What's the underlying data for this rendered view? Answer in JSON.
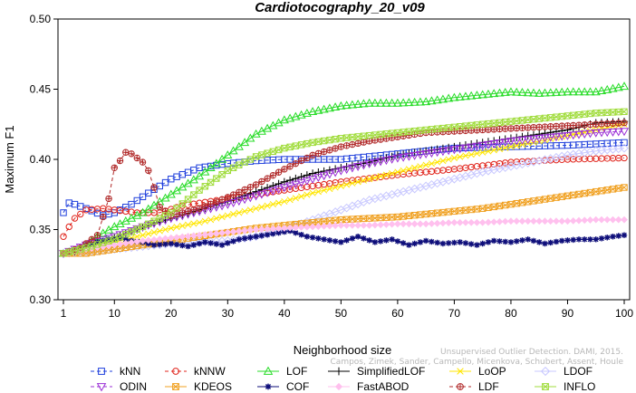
{
  "chart_data": {
    "type": "line",
    "title": "Cardiotocography_20_v09",
    "xlabel": "Neighborhood size",
    "ylabel": "Maximum F1",
    "xlim": [
      1,
      100
    ],
    "ylim": [
      0.3,
      0.5
    ],
    "x_ticks": [
      1,
      10,
      20,
      30,
      40,
      50,
      60,
      70,
      80,
      90,
      100
    ],
    "y_ticks": [
      "0.30",
      "0.35",
      "0.40",
      "0.45",
      "0.50"
    ],
    "grid": false,
    "legend_position": "bottom",
    "series": [
      {
        "name": "kNN",
        "color": "#1f3fdc",
        "marker": "square",
        "dash": "4,3",
        "points": [
          [
            1,
            0.362
          ],
          [
            2,
            0.369
          ],
          [
            3,
            0.368
          ],
          [
            5,
            0.365
          ],
          [
            8,
            0.36
          ],
          [
            10,
            0.362
          ],
          [
            13,
            0.368
          ],
          [
            16,
            0.376
          ],
          [
            20,
            0.386
          ],
          [
            25,
            0.394
          ],
          [
            30,
            0.397
          ],
          [
            35,
            0.399
          ],
          [
            40,
            0.4
          ],
          [
            50,
            0.4
          ],
          [
            60,
            0.404
          ],
          [
            70,
            0.408
          ],
          [
            80,
            0.409
          ],
          [
            90,
            0.41
          ],
          [
            100,
            0.412
          ]
        ]
      },
      {
        "name": "kNNW",
        "color": "#e0241c",
        "marker": "circle",
        "dash": "4,3",
        "points": [
          [
            1,
            0.345
          ],
          [
            2,
            0.352
          ],
          [
            3,
            0.358
          ],
          [
            5,
            0.364
          ],
          [
            8,
            0.365
          ],
          [
            10,
            0.364
          ],
          [
            14,
            0.362
          ],
          [
            18,
            0.362
          ],
          [
            22,
            0.367
          ],
          [
            30,
            0.372
          ],
          [
            40,
            0.378
          ],
          [
            50,
            0.384
          ],
          [
            60,
            0.389
          ],
          [
            70,
            0.393
          ],
          [
            80,
            0.398
          ],
          [
            90,
            0.4
          ],
          [
            100,
            0.401
          ]
        ]
      },
      {
        "name": "LOF",
        "color": "#28dc28",
        "marker": "triangle",
        "dash": "",
        "points": [
          [
            1,
            0.333
          ],
          [
            4,
            0.336
          ],
          [
            7,
            0.345
          ],
          [
            10,
            0.352
          ],
          [
            15,
            0.362
          ],
          [
            20,
            0.375
          ],
          [
            25,
            0.388
          ],
          [
            30,
            0.403
          ],
          [
            35,
            0.418
          ],
          [
            40,
            0.428
          ],
          [
            45,
            0.434
          ],
          [
            50,
            0.438
          ],
          [
            55,
            0.44
          ],
          [
            60,
            0.44
          ],
          [
            65,
            0.441
          ],
          [
            70,
            0.444
          ],
          [
            75,
            0.446
          ],
          [
            80,
            0.448
          ],
          [
            85,
            0.447
          ],
          [
            90,
            0.448
          ],
          [
            95,
            0.448
          ],
          [
            100,
            0.452
          ]
        ]
      },
      {
        "name": "SimplifiedLOF",
        "color": "#000000",
        "marker": "plus",
        "dash": "",
        "points": [
          [
            1,
            0.333
          ],
          [
            4,
            0.335
          ],
          [
            8,
            0.341
          ],
          [
            12,
            0.347
          ],
          [
            16,
            0.353
          ],
          [
            20,
            0.358
          ],
          [
            25,
            0.364
          ],
          [
            30,
            0.37
          ],
          [
            35,
            0.377
          ],
          [
            40,
            0.384
          ],
          [
            45,
            0.39
          ],
          [
            50,
            0.394
          ],
          [
            55,
            0.398
          ],
          [
            60,
            0.403
          ],
          [
            65,
            0.406
          ],
          [
            70,
            0.409
          ],
          [
            75,
            0.412
          ],
          [
            80,
            0.415
          ],
          [
            85,
            0.418
          ],
          [
            90,
            0.421
          ],
          [
            95,
            0.426
          ],
          [
            100,
            0.427
          ]
        ]
      },
      {
        "name": "LoOP",
        "color": "#ffe600",
        "marker": "x",
        "dash": "",
        "points": [
          [
            1,
            0.333
          ],
          [
            5,
            0.336
          ],
          [
            10,
            0.341
          ],
          [
            15,
            0.346
          ],
          [
            20,
            0.351
          ],
          [
            25,
            0.355
          ],
          [
            30,
            0.36
          ],
          [
            35,
            0.365
          ],
          [
            40,
            0.37
          ],
          [
            45,
            0.376
          ],
          [
            50,
            0.381
          ],
          [
            55,
            0.386
          ],
          [
            60,
            0.391
          ],
          [
            65,
            0.396
          ],
          [
            70,
            0.401
          ],
          [
            75,
            0.405
          ],
          [
            80,
            0.409
          ],
          [
            85,
            0.413
          ],
          [
            90,
            0.417
          ],
          [
            95,
            0.421
          ],
          [
            100,
            0.425
          ]
        ]
      },
      {
        "name": "LDOF",
        "color": "#c8c8ff",
        "marker": "diamond",
        "dash": "",
        "points": [
          [
            1,
            0.333
          ],
          [
            5,
            0.334
          ],
          [
            10,
            0.336
          ],
          [
            15,
            0.338
          ],
          [
            20,
            0.34
          ],
          [
            25,
            0.341
          ],
          [
            30,
            0.342
          ],
          [
            35,
            0.345
          ],
          [
            40,
            0.35
          ],
          [
            45,
            0.357
          ],
          [
            50,
            0.364
          ],
          [
            55,
            0.371
          ],
          [
            60,
            0.376
          ],
          [
            65,
            0.381
          ],
          [
            70,
            0.386
          ],
          [
            75,
            0.391
          ],
          [
            80,
            0.395
          ],
          [
            85,
            0.399
          ],
          [
            90,
            0.403
          ],
          [
            95,
            0.406
          ],
          [
            100,
            0.408
          ]
        ]
      },
      {
        "name": "ODIN",
        "color": "#9b2fd6",
        "marker": "triangle-down",
        "dash": "4,3",
        "points": [
          [
            1,
            0.333
          ],
          [
            5,
            0.339
          ],
          [
            10,
            0.345
          ],
          [
            15,
            0.352
          ],
          [
            20,
            0.358
          ],
          [
            25,
            0.363
          ],
          [
            30,
            0.368
          ],
          [
            35,
            0.374
          ],
          [
            40,
            0.38
          ],
          [
            45,
            0.386
          ],
          [
            50,
            0.392
          ],
          [
            55,
            0.397
          ],
          [
            60,
            0.401
          ],
          [
            65,
            0.404
          ],
          [
            70,
            0.407
          ],
          [
            75,
            0.41
          ],
          [
            80,
            0.413
          ],
          [
            85,
            0.415
          ],
          [
            90,
            0.417
          ],
          [
            95,
            0.419
          ],
          [
            100,
            0.42
          ]
        ]
      },
      {
        "name": "KDEOS",
        "color": "#f0a020",
        "marker": "square-x",
        "dash": "",
        "points": [
          [
            1,
            0.333
          ],
          [
            5,
            0.333
          ],
          [
            10,
            0.336
          ],
          [
            15,
            0.339
          ],
          [
            20,
            0.342
          ],
          [
            25,
            0.345
          ],
          [
            30,
            0.348
          ],
          [
            35,
            0.351
          ],
          [
            40,
            0.353
          ],
          [
            45,
            0.355
          ],
          [
            50,
            0.357
          ],
          [
            55,
            0.358
          ],
          [
            60,
            0.359
          ],
          [
            65,
            0.361
          ],
          [
            70,
            0.363
          ],
          [
            75,
            0.365
          ],
          [
            80,
            0.368
          ],
          [
            85,
            0.371
          ],
          [
            90,
            0.374
          ],
          [
            95,
            0.377
          ],
          [
            100,
            0.38
          ]
        ]
      },
      {
        "name": "COF",
        "color": "#0e0e7a",
        "marker": "star",
        "dash": "",
        "points": [
          [
            1,
            0.333
          ],
          [
            3,
            0.335
          ],
          [
            5,
            0.338
          ],
          [
            7,
            0.341
          ],
          [
            9,
            0.343
          ],
          [
            11,
            0.344
          ],
          [
            13,
            0.342
          ],
          [
            15,
            0.341
          ],
          [
            17,
            0.339
          ],
          [
            20,
            0.34
          ],
          [
            23,
            0.338
          ],
          [
            26,
            0.341
          ],
          [
            29,
            0.339
          ],
          [
            32,
            0.343
          ],
          [
            35,
            0.345
          ],
          [
            38,
            0.347
          ],
          [
            41,
            0.349
          ],
          [
            44,
            0.345
          ],
          [
            47,
            0.343
          ],
          [
            50,
            0.341
          ],
          [
            53,
            0.345
          ],
          [
            56,
            0.341
          ],
          [
            59,
            0.343
          ],
          [
            62,
            0.339
          ],
          [
            65,
            0.342
          ],
          [
            68,
            0.34
          ],
          [
            71,
            0.341
          ],
          [
            74,
            0.339
          ],
          [
            77,
            0.342
          ],
          [
            80,
            0.341
          ],
          [
            83,
            0.343
          ],
          [
            86,
            0.34
          ],
          [
            89,
            0.342
          ],
          [
            92,
            0.343
          ],
          [
            95,
            0.343
          ],
          [
            98,
            0.345
          ],
          [
            100,
            0.346
          ]
        ]
      },
      {
        "name": "FastABOD",
        "color": "#ffc0ee",
        "marker": "diamond-filled",
        "dash": "",
        "points": [
          [
            1,
            0.333
          ],
          [
            5,
            0.336
          ],
          [
            10,
            0.339
          ],
          [
            15,
            0.342
          ],
          [
            20,
            0.344
          ],
          [
            25,
            0.346
          ],
          [
            30,
            0.348
          ],
          [
            35,
            0.35
          ],
          [
            40,
            0.351
          ],
          [
            45,
            0.352
          ],
          [
            50,
            0.353
          ],
          [
            55,
            0.353
          ],
          [
            60,
            0.354
          ],
          [
            65,
            0.354
          ],
          [
            70,
            0.355
          ],
          [
            75,
            0.355
          ],
          [
            80,
            0.356
          ],
          [
            85,
            0.356
          ],
          [
            90,
            0.356
          ],
          [
            95,
            0.357
          ],
          [
            100,
            0.357
          ]
        ]
      },
      {
        "name": "LDF",
        "color": "#b02828",
        "marker": "circle-plus",
        "dash": "4,3",
        "points": [
          [
            1,
            0.333
          ],
          [
            4,
            0.337
          ],
          [
            7,
            0.346
          ],
          [
            9,
            0.372
          ],
          [
            10,
            0.394
          ],
          [
            11,
            0.399
          ],
          [
            12,
            0.405
          ],
          [
            13,
            0.404
          ],
          [
            14,
            0.401
          ],
          [
            15,
            0.398
          ],
          [
            16,
            0.392
          ],
          [
            17,
            0.38
          ],
          [
            18,
            0.366
          ],
          [
            20,
            0.36
          ],
          [
            25,
            0.365
          ],
          [
            30,
            0.373
          ],
          [
            35,
            0.382
          ],
          [
            40,
            0.393
          ],
          [
            45,
            0.403
          ],
          [
            50,
            0.409
          ],
          [
            55,
            0.413
          ],
          [
            60,
            0.416
          ],
          [
            65,
            0.419
          ],
          [
            70,
            0.42
          ],
          [
            75,
            0.421
          ],
          [
            80,
            0.422
          ],
          [
            85,
            0.423
          ],
          [
            90,
            0.424
          ],
          [
            95,
            0.425
          ],
          [
            100,
            0.426
          ]
        ]
      },
      {
        "name": "INFLO",
        "color": "#a0dc3c",
        "marker": "square-x",
        "dash": "",
        "points": [
          [
            1,
            0.333
          ],
          [
            5,
            0.337
          ],
          [
            10,
            0.343
          ],
          [
            15,
            0.352
          ],
          [
            20,
            0.362
          ],
          [
            25,
            0.378
          ],
          [
            30,
            0.392
          ],
          [
            35,
            0.402
          ],
          [
            40,
            0.408
          ],
          [
            45,
            0.412
          ],
          [
            50,
            0.415
          ],
          [
            55,
            0.417
          ],
          [
            60,
            0.419
          ],
          [
            65,
            0.421
          ],
          [
            70,
            0.423
          ],
          [
            75,
            0.425
          ],
          [
            80,
            0.427
          ],
          [
            85,
            0.429
          ],
          [
            90,
            0.431
          ],
          [
            95,
            0.433
          ],
          [
            100,
            0.434
          ]
        ]
      }
    ],
    "watermark_line1": "Unsupervised Outlier Detection. DAMI, 2015.",
    "watermark_line2": "Campos, Zimek, Sander, Campello, Micenkova, Schubert, Assent, Houle"
  }
}
